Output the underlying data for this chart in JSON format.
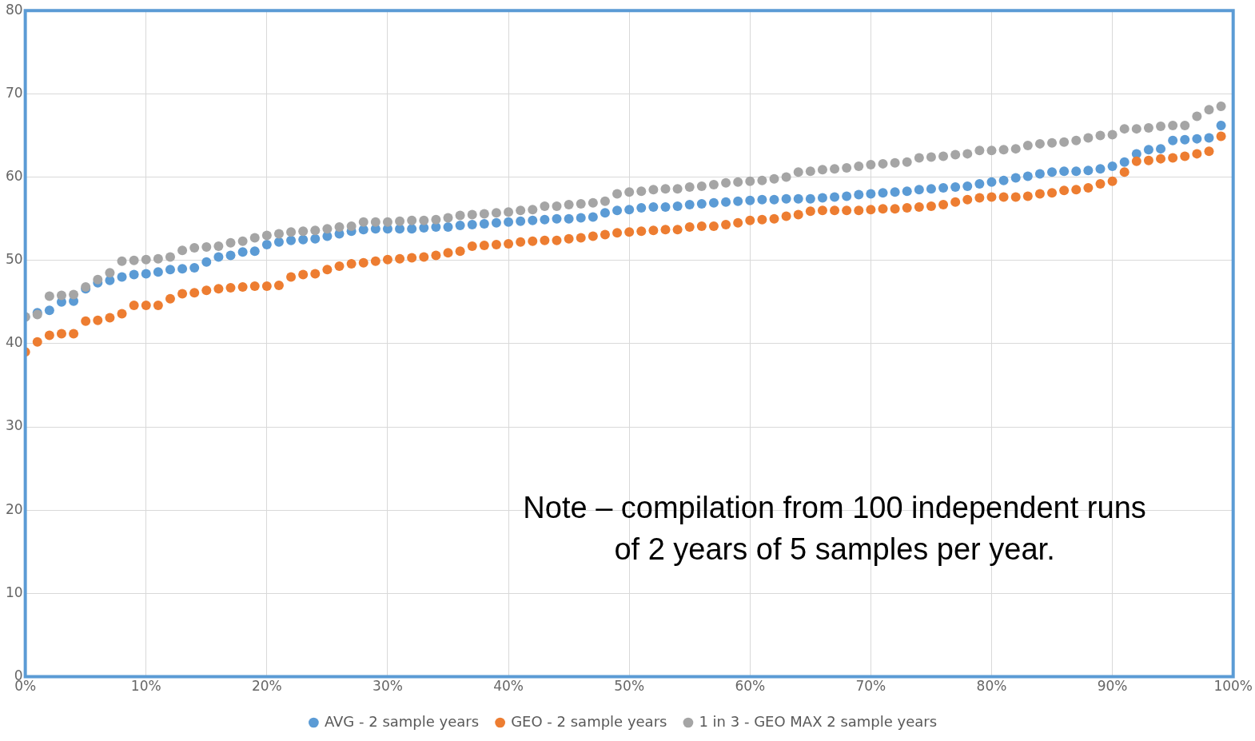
{
  "chart_data": {
    "type": "scatter",
    "x": [
      0,
      1,
      2,
      3,
      4,
      5,
      6,
      7,
      8,
      9,
      10,
      11,
      12,
      13,
      14,
      15,
      16,
      17,
      18,
      19,
      20,
      21,
      22,
      23,
      24,
      25,
      26,
      27,
      28,
      29,
      30,
      31,
      32,
      33,
      34,
      35,
      36,
      37,
      38,
      39,
      40,
      41,
      42,
      43,
      44,
      45,
      46,
      47,
      48,
      49,
      50,
      51,
      52,
      53,
      54,
      55,
      56,
      57,
      58,
      59,
      60,
      61,
      62,
      63,
      64,
      65,
      66,
      67,
      68,
      69,
      70,
      71,
      72,
      73,
      74,
      75,
      76,
      77,
      78,
      79,
      80,
      81,
      82,
      83,
      84,
      85,
      86,
      87,
      88,
      89,
      90,
      91,
      92,
      93,
      94,
      95,
      96,
      97,
      98,
      99
    ],
    "series": [
      {
        "name": "AVG - 2 sample years",
        "color": "#5b9bd5",
        "values": [
          43.2,
          43.7,
          44.0,
          45.0,
          45.1,
          46.6,
          47.3,
          47.6,
          48.0,
          48.3,
          48.4,
          48.6,
          48.9,
          49.0,
          49.1,
          49.8,
          50.4,
          50.6,
          51.0,
          51.1,
          51.9,
          52.2,
          52.4,
          52.5,
          52.6,
          52.9,
          53.2,
          53.5,
          53.7,
          53.8,
          53.8,
          53.8,
          53.8,
          53.9,
          54.0,
          54.0,
          54.2,
          54.3,
          54.4,
          54.5,
          54.6,
          54.7,
          54.8,
          54.9,
          55.0,
          55.0,
          55.1,
          55.2,
          55.7,
          56.0,
          56.1,
          56.3,
          56.4,
          56.4,
          56.5,
          56.7,
          56.8,
          56.9,
          57.0,
          57.1,
          57.2,
          57.3,
          57.3,
          57.4,
          57.4,
          57.4,
          57.5,
          57.6,
          57.7,
          57.9,
          58.0,
          58.1,
          58.2,
          58.3,
          58.5,
          58.6,
          58.7,
          58.8,
          58.9,
          59.2,
          59.4,
          59.6,
          59.9,
          60.1,
          60.4,
          60.6,
          60.7,
          60.7,
          60.8,
          61.0,
          61.3,
          61.8,
          62.8,
          63.3,
          63.4,
          64.4,
          64.5,
          64.6,
          64.7,
          66.2
        ]
      },
      {
        "name": "GEO - 2 sample years",
        "color": "#ed7d31",
        "values": [
          39.0,
          40.2,
          41.0,
          41.2,
          41.2,
          42.7,
          42.8,
          43.1,
          43.6,
          44.6,
          44.6,
          44.6,
          45.4,
          46.0,
          46.1,
          46.4,
          46.6,
          46.7,
          46.8,
          46.9,
          46.9,
          47.0,
          48.0,
          48.3,
          48.4,
          48.9,
          49.3,
          49.6,
          49.7,
          49.9,
          50.1,
          50.2,
          50.3,
          50.4,
          50.6,
          50.9,
          51.1,
          51.7,
          51.8,
          51.9,
          52.0,
          52.2,
          52.3,
          52.4,
          52.4,
          52.6,
          52.7,
          52.9,
          53.1,
          53.3,
          53.4,
          53.5,
          53.6,
          53.7,
          53.7,
          54.0,
          54.1,
          54.1,
          54.3,
          54.5,
          54.8,
          54.9,
          55.0,
          55.3,
          55.5,
          55.9,
          56.0,
          56.0,
          56.0,
          56.0,
          56.1,
          56.2,
          56.2,
          56.3,
          56.4,
          56.5,
          56.7,
          57.0,
          57.3,
          57.5,
          57.6,
          57.6,
          57.6,
          57.7,
          58.0,
          58.1,
          58.4,
          58.5,
          58.7,
          59.2,
          59.5,
          60.6,
          61.9,
          62.0,
          62.2,
          62.3,
          62.5,
          62.8,
          63.1,
          64.9
        ]
      },
      {
        "name": "1 in 3 - GEO MAX 2 sample years",
        "color": "#a5a5a5",
        "values": [
          43.2,
          43.5,
          45.7,
          45.8,
          45.9,
          46.8,
          47.7,
          48.5,
          49.9,
          50.0,
          50.1,
          50.2,
          50.4,
          51.2,
          51.5,
          51.6,
          51.7,
          52.1,
          52.3,
          52.7,
          53.0,
          53.2,
          53.4,
          53.5,
          53.6,
          53.8,
          54.0,
          54.1,
          54.6,
          54.6,
          54.6,
          54.7,
          54.8,
          54.8,
          54.9,
          55.1,
          55.4,
          55.5,
          55.6,
          55.7,
          55.8,
          56.0,
          56.1,
          56.5,
          56.5,
          56.7,
          56.8,
          56.9,
          57.1,
          58.0,
          58.2,
          58.3,
          58.5,
          58.6,
          58.6,
          58.8,
          58.9,
          59.1,
          59.3,
          59.4,
          59.5,
          59.6,
          59.8,
          60.0,
          60.6,
          60.7,
          60.9,
          61.0,
          61.1,
          61.3,
          61.5,
          61.6,
          61.7,
          61.8,
          62.3,
          62.4,
          62.5,
          62.7,
          62.8,
          63.2,
          63.2,
          63.3,
          63.4,
          63.8,
          64.0,
          64.1,
          64.2,
          64.4,
          64.7,
          65.0,
          65.1,
          65.8,
          65.8,
          65.9,
          66.1,
          66.2,
          66.2,
          67.3,
          68.1,
          68.5
        ]
      }
    ],
    "xlim": [
      0,
      100
    ],
    "xticks": [
      {
        "value": 0,
        "label": "0%"
      },
      {
        "value": 10,
        "label": "10%"
      },
      {
        "value": 20,
        "label": "20%"
      },
      {
        "value": 30,
        "label": "30%"
      },
      {
        "value": 40,
        "label": "40%"
      },
      {
        "value": 50,
        "label": "50%"
      },
      {
        "value": 60,
        "label": "60%"
      },
      {
        "value": 70,
        "label": "70%"
      },
      {
        "value": 80,
        "label": "80%"
      },
      {
        "value": 90,
        "label": "90%"
      },
      {
        "value": 100,
        "label": "100%"
      }
    ],
    "ylim": [
      0,
      80
    ],
    "yticks": [
      0,
      10,
      20,
      30,
      40,
      50,
      60,
      70,
      80
    ],
    "grid": true,
    "legend": "bottom",
    "marker": "circle",
    "annotations": [
      "Note – compilation from 100 independent runs of 2 years of 5 samples per year."
    ]
  }
}
